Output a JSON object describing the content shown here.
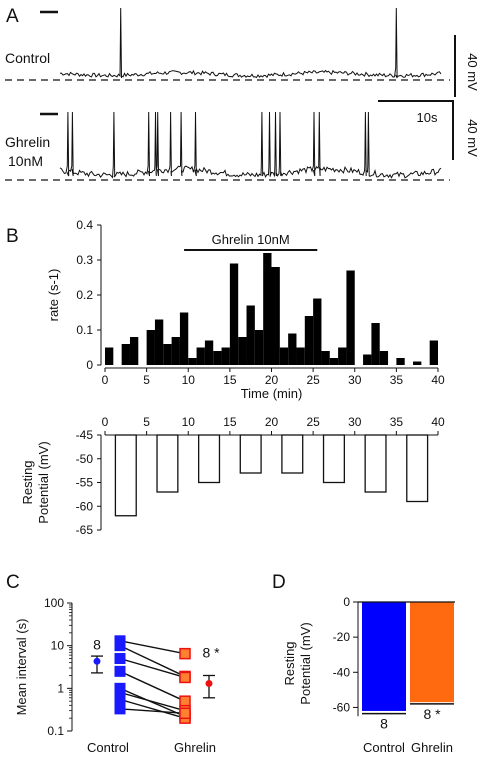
{
  "panel_labels": {
    "A": "A",
    "B": "B",
    "C": "C",
    "D": "D"
  },
  "traces": {
    "row1_label": "Control",
    "row2_label_line1": "Ghrelin",
    "row2_label_line2": "10nM",
    "scale_voltage_1": "40 mV",
    "scale_voltage_2": "40 mV",
    "scale_time": "10s"
  },
  "chart_data": [
    {
      "panel": "A",
      "type": "line",
      "description_units": "membrane voltage traces",
      "series": [
        {
          "name": "Control",
          "spike_times_s": [
            7.7,
            44.2
          ]
        },
        {
          "name": "Ghrelin 10nM",
          "spike_times_s": [
            0.7,
            1.3,
            6.8,
            11.4,
            12.3,
            12.6,
            14.3,
            15.7,
            17.6,
            26.4,
            27.4,
            28.2,
            28.8,
            33.3,
            34.0,
            40.1,
            40.5
          ]
        }
      ],
      "scale_bars": {
        "voltage_mV": 40,
        "time_s": 10
      }
    },
    {
      "panel": "B-top",
      "type": "bar",
      "annotation": "Ghrelin 10nM",
      "annotation_range": [
        9.5,
        25.5
      ],
      "xlabel": "Time (min)",
      "ylabel": "rate (s-1)",
      "xlim": [
        0,
        40
      ],
      "ylim": [
        0,
        0.4
      ],
      "xticks": [
        0,
        5,
        10,
        15,
        20,
        25,
        30,
        35,
        40
      ],
      "yticks": [
        0,
        0.1,
        0.2,
        0.3,
        0.4
      ],
      "x_start": [
        0,
        2,
        3,
        5,
        6,
        7,
        8,
        9,
        10,
        11,
        12,
        13,
        14,
        15,
        16,
        17,
        18,
        19,
        20,
        21,
        22,
        23,
        24,
        25,
        26,
        27,
        28,
        29,
        30,
        31,
        32,
        33,
        34,
        35,
        36,
        37,
        38,
        39
      ],
      "values": [
        0.05,
        0.06,
        0.08,
        0.1,
        0.13,
        0.06,
        0.08,
        0.15,
        0.02,
        0.05,
        0.07,
        0.04,
        0.05,
        0.29,
        0.08,
        0.17,
        0.1,
        0.32,
        0.28,
        0.05,
        0.09,
        0.05,
        0.14,
        0.19,
        0.04,
        0.02,
        0.05,
        0.27,
        0.0,
        0.03,
        0.12,
        0.04,
        0.0,
        0.02,
        0.0,
        0.01,
        0.0,
        0.07
      ],
      "bin_width": 1
    },
    {
      "panel": "B-bottom",
      "type": "bar",
      "ylabel_line1": "Resting",
      "ylabel_line2": "Potential (mV)",
      "xlim": [
        0,
        40
      ],
      "ylim": [
        -65,
        -45
      ],
      "xticks": [
        0,
        5,
        10,
        15,
        20,
        25,
        30,
        35,
        40
      ],
      "yticks": [
        -45,
        -50,
        -55,
        -60,
        -65
      ],
      "x_centers": [
        2.5,
        7.5,
        12.5,
        17.5,
        22.5,
        27.5,
        32.5,
        37.5
      ],
      "values": [
        -62,
        -57,
        -55,
        -53,
        -53,
        -55,
        -57,
        -59
      ],
      "bar_width": 2.5
    },
    {
      "panel": "C",
      "type": "scatter",
      "ylabel": "Mean interval (s)",
      "yscale": "log",
      "ylim": [
        0.1,
        100
      ],
      "yticks": [
        0.1,
        1,
        10,
        100
      ],
      "categories": [
        "Control",
        "Ghrelin"
      ],
      "n_labels": [
        "8",
        "8 *"
      ],
      "pairs": [
        [
          13,
          6.5
        ],
        [
          10,
          1.9
        ],
        [
          5,
          1.8
        ],
        [
          2.5,
          0.5
        ],
        [
          1.0,
          0.22
        ],
        [
          0.8,
          0.3
        ],
        [
          0.55,
          0.2
        ],
        [
          0.33,
          0.26
        ]
      ],
      "mean": [
        4.3,
        1.3
      ],
      "error_low": [
        2.3,
        0.6
      ],
      "error_high": [
        5.7,
        2.0
      ],
      "colors": {
        "control": "#1a1aff",
        "ghrelin_fill": "#ff8030",
        "ghrelin_edge": "#ee1111",
        "ghrelin_mean": "#ee1111",
        "control_mean": "#1a1aff"
      }
    },
    {
      "panel": "D",
      "type": "bar",
      "ylabel_line1": "Resting",
      "ylabel_line2": "Potential (mV)",
      "categories": [
        "Control",
        "Ghrelin"
      ],
      "values": [
        -62,
        -57
      ],
      "error": [
        1.5,
        1.0
      ],
      "ylim": [
        -70,
        0
      ],
      "yticks": [
        0,
        -20,
        -40,
        -60
      ],
      "n_labels": [
        "8",
        "8 *"
      ],
      "colors": [
        "#0000ff",
        "#ff6a10"
      ]
    }
  ]
}
